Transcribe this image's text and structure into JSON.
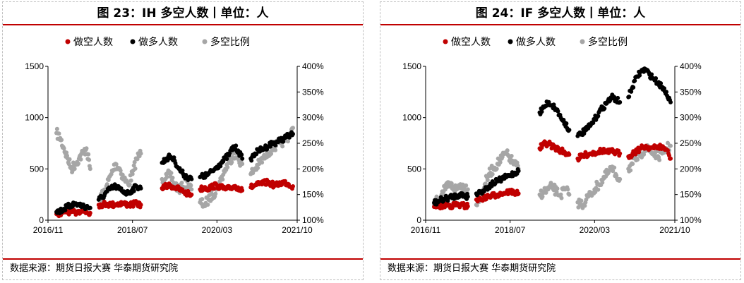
{
  "charts": [
    {
      "title": "图 23：IH 多空人数丨单位：人",
      "source": "数据来源：期货日报大赛 华泰期货研究院"
    },
    {
      "title": "图 24：IF 多空人数丨单位：人",
      "source": "数据来源：期货日报大赛 华泰期货研究院"
    }
  ],
  "chart_data": [
    {
      "type": "scatter",
      "title": "图 23：IH 多空人数丨单位：人",
      "x_ticks": [
        "2016/11",
        "2018/07",
        "2020/03",
        "2021/10"
      ],
      "x_range": [
        "2016/11",
        "2021/10"
      ],
      "y_left": {
        "range": [
          0,
          1500
        ],
        "ticks": [
          "0",
          "500",
          "1000",
          "1500"
        ]
      },
      "y_right": {
        "range": [
          "100%",
          "400%"
        ],
        "ticks": [
          "100%",
          "150%",
          "200%",
          "250%",
          "300%",
          "350%",
          "400%"
        ]
      },
      "legend_position": "top-center",
      "grid": false,
      "series": [
        {
          "name": "做空人数",
          "axis": "left",
          "color": "#c00000",
          "segments": [
            {
              "start": "2017-01",
              "end": "2017-09",
              "values": [
                60,
                70,
                80,
                85,
                80,
                75,
                90,
                85,
                80,
                70
              ]
            },
            {
              "start": "2017-11",
              "end": "2018-09",
              "values": [
                150,
                155,
                160,
                150,
                155,
                165,
                160,
                150,
                155,
                160,
                150
              ]
            },
            {
              "start": "2019-02",
              "end": "2019-09",
              "values": [
                310,
                330,
                340,
                320,
                300,
                280,
                260,
                250
              ]
            },
            {
              "start": "2019-11",
              "end": "2020-09",
              "values": [
                300,
                320,
                310,
                330,
                340,
                320,
                300,
                310,
                330,
                320,
                290
              ]
            },
            {
              "start": "2020-11",
              "end": "2021-09",
              "values": [
                320,
                340,
                350,
                360,
                370,
                350,
                340,
                360,
                370,
                350,
                330
              ]
            }
          ]
        },
        {
          "name": "做多人数",
          "axis": "left",
          "color": "#000000",
          "segments": [
            {
              "start": "2017-01",
              "end": "2017-09",
              "values": [
                80,
                90,
                110,
                130,
                150,
                160,
                150,
                140,
                130,
                120
              ]
            },
            {
              "start": "2017-11",
              "end": "2018-09",
              "values": [
                200,
                230,
                280,
                310,
                330,
                300,
                280,
                260,
                300,
                330,
                310
              ]
            },
            {
              "start": "2019-02",
              "end": "2019-09",
              "values": [
                560,
                600,
                620,
                580,
                500,
                450,
                420,
                400
              ]
            },
            {
              "start": "2019-11",
              "end": "2020-09",
              "values": [
                420,
                430,
                450,
                480,
                520,
                560,
                600,
                650,
                720,
                680,
                600
              ]
            },
            {
              "start": "2020-11",
              "end": "2021-09",
              "values": [
                600,
                650,
                680,
                700,
                720,
                750,
                760,
                780,
                800,
                820,
                840
              ]
            }
          ]
        },
        {
          "name": "多空比例",
          "axis": "right",
          "color": "#a6a6a6",
          "segments": [
            {
              "start": "2017-01",
              "end": "2017-09",
              "values": [
                "270%",
                "260%",
                "240%",
                "220%",
                "200%",
                "210%",
                "220%",
                "230%",
                "240%",
                "200%"
              ]
            },
            {
              "start": "2017-11",
              "end": "2018-09",
              "values": [
                "140%",
                "150%",
                "170%",
                "190%",
                "210%",
                "200%",
                "180%",
                "170%",
                "190%",
                "220%",
                "230%"
              ]
            },
            {
              "start": "2019-02",
              "end": "2019-09",
              "values": [
                "180%",
                "190%",
                "185%",
                "170%",
                "160%",
                "165%",
                "175%",
                "160%"
              ]
            },
            {
              "start": "2019-11",
              "end": "2020-09",
              "values": [
                "135%",
                "130%",
                "140%",
                "150%",
                "160%",
                "180%",
                "200%",
                "215%",
                "230%",
                "220%",
                "210%"
              ]
            },
            {
              "start": "2020-11",
              "end": "2021-09",
              "values": [
                "190%",
                "200%",
                "210%",
                "220%",
                "230%",
                "240%",
                "245%",
                "250%",
                "255%",
                "265%",
                "280%"
              ]
            }
          ]
        }
      ]
    },
    {
      "type": "scatter",
      "title": "图 24：IF 多空人数丨单位：人",
      "x_ticks": [
        "2016/11",
        "2018/07",
        "2020/03",
        "2021/10"
      ],
      "x_range": [
        "2016/11",
        "2021/10"
      ],
      "y_left": {
        "range": [
          0,
          1500
        ],
        "ticks": [
          "0",
          "500",
          "1000",
          "1500"
        ]
      },
      "y_right": {
        "range": [
          "100%",
          "400%"
        ],
        "ticks": [
          "100%",
          "150%",
          "200%",
          "250%",
          "300%",
          "350%",
          "400%"
        ]
      },
      "legend_position": "top-center",
      "grid": false,
      "series": [
        {
          "name": "做空人数",
          "axis": "left",
          "color": "#c00000",
          "segments": [
            {
              "start": "2017-01",
              "end": "2017-09",
              "values": [
                130,
                135,
                140,
                150,
                145,
                140,
                150,
                145,
                140,
                135
              ]
            },
            {
              "start": "2017-11",
              "end": "2018-09",
              "values": [
                200,
                210,
                220,
                230,
                240,
                250,
                260,
                270,
                280,
                270,
                260
              ]
            },
            {
              "start": "2019-02",
              "end": "2019-09",
              "values": [
                700,
                740,
                750,
                720,
                700,
                680,
                660,
                640
              ]
            },
            {
              "start": "2019-11",
              "end": "2020-09",
              "values": [
                600,
                620,
                640,
                650,
                660,
                670,
                680,
                660,
                670,
                660,
                650
              ]
            },
            {
              "start": "2020-11",
              "end": "2021-09",
              "values": [
                620,
                650,
                680,
                700,
                720,
                710,
                700,
                720,
                710,
                690,
                600
              ]
            }
          ]
        },
        {
          "name": "做多人数",
          "axis": "left",
          "color": "#000000",
          "segments": [
            {
              "start": "2017-01",
              "end": "2017-09",
              "values": [
                170,
                180,
                200,
                210,
                220,
                230,
                240,
                250,
                240,
                230
              ]
            },
            {
              "start": "2017-11",
              "end": "2018-09",
              "values": [
                260,
                280,
                300,
                330,
                360,
                380,
                400,
                420,
                440,
                460,
                480
              ]
            },
            {
              "start": "2019-02",
              "end": "2019-09",
              "values": [
                1050,
                1100,
                1150,
                1120,
                1080,
                1000,
                950,
                880
              ]
            },
            {
              "start": "2019-11",
              "end": "2020-09",
              "values": [
                820,
                850,
                880,
                920,
                980,
                1050,
                1100,
                1150,
                1200,
                1180,
                1150
              ]
            },
            {
              "start": "2020-11",
              "end": "2021-09",
              "values": [
                1200,
                1300,
                1400,
                1450,
                1470,
                1420,
                1380,
                1340,
                1300,
                1250,
                1150
              ]
            }
          ]
        },
        {
          "name": "多空比例",
          "axis": "right",
          "color": "#a6a6a6",
          "segments": [
            {
              "start": "2017-01",
              "end": "2017-09",
              "values": [
                "130%",
                "140%",
                "150%",
                "160%",
                "170%",
                "165%",
                "160%",
                "170%",
                "165%",
                "160%"
              ]
            },
            {
              "start": "2017-11",
              "end": "2018-09",
              "values": [
                "130%",
                "150%",
                "170%",
                "190%",
                "200%",
                "210%",
                "220%",
                "230%",
                "220%",
                "210%",
                "200%"
              ]
            },
            {
              "start": "2019-02",
              "end": "2019-09",
              "values": [
                "150%",
                "155%",
                "160%",
                "165%",
                "155%",
                "150%",
                "160%",
                "150%"
              ]
            },
            {
              "start": "2019-11",
              "end": "2020-09",
              "values": [
                "135%",
                "130%",
                "140%",
                "150%",
                "160%",
                "170%",
                "180%",
                "190%",
                "200%",
                "190%",
                "180%"
              ]
            },
            {
              "start": "2020-11",
              "end": "2021-09",
              "values": [
                "200%",
                "210%",
                "220%",
                "230%",
                "240%",
                "235%",
                "230%",
                "225%",
                "230%",
                "240%",
                "245%"
              ]
            }
          ]
        }
      ]
    }
  ]
}
